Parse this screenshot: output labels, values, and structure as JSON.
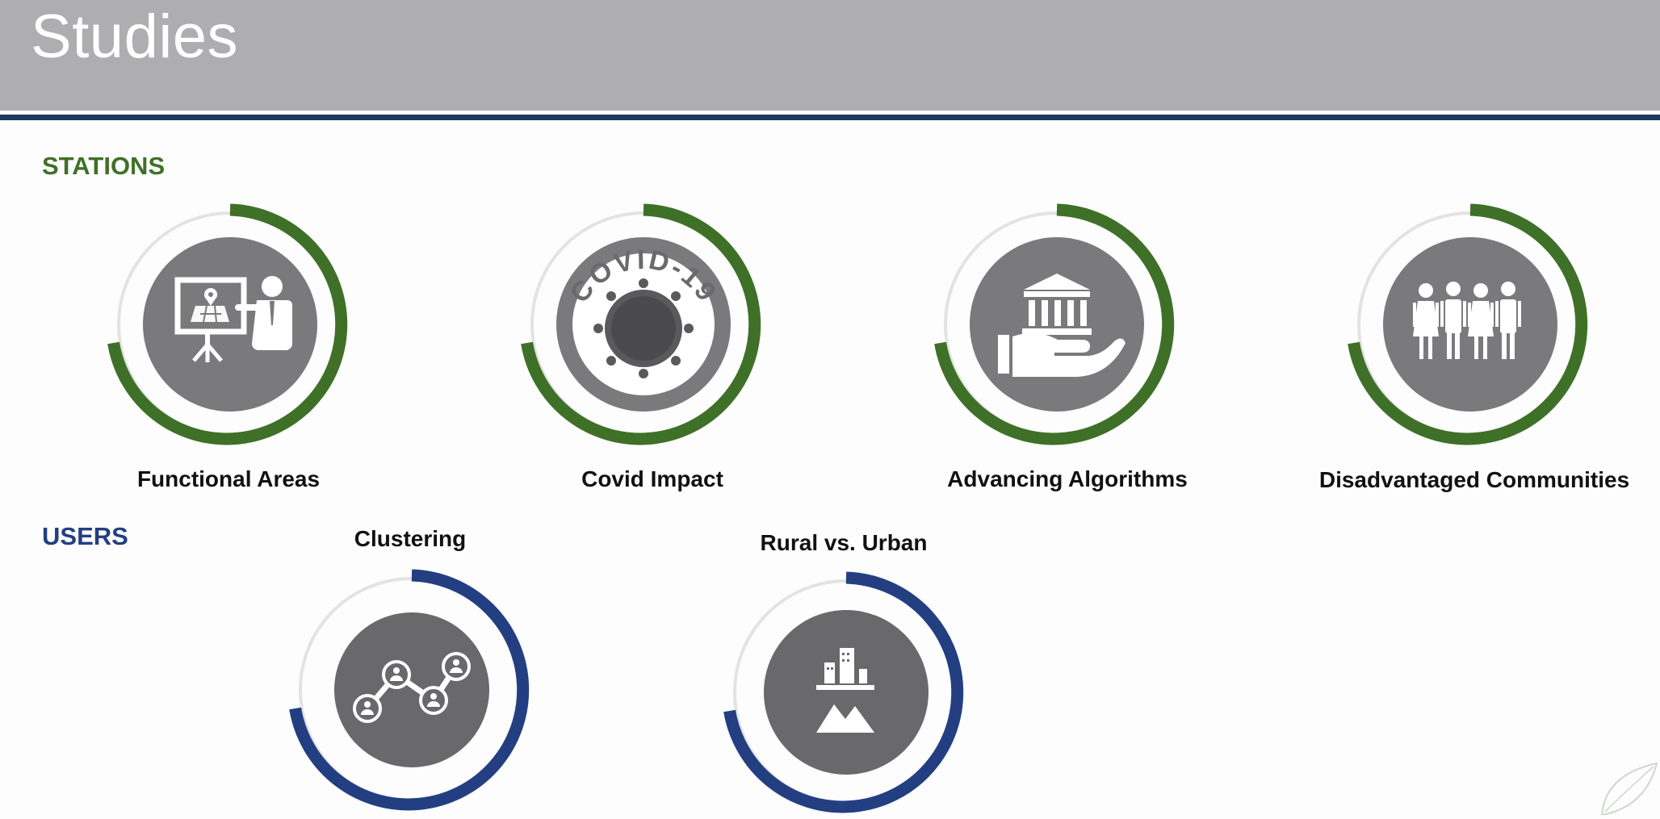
{
  "page": {
    "title": "Studies"
  },
  "colors": {
    "green": "#3f7028",
    "navy": "#233f82",
    "circle": "#7a7a7c",
    "header": "#aeaeb0"
  },
  "sections": {
    "stations": {
      "title": "STATIONS",
      "items": [
        {
          "label": "Functional Areas",
          "icon": "presentation-map-icon"
        },
        {
          "label": "Covid Impact",
          "icon": "covid-virus-icon",
          "icon_text": "COVID-19"
        },
        {
          "label": "Advancing Algorithms",
          "icon": "bank-hand-icon"
        },
        {
          "label": "Disadvantaged Communities",
          "icon": "people-group-icon"
        }
      ]
    },
    "users": {
      "title": "USERS",
      "items": [
        {
          "label": "Clustering",
          "icon": "user-network-icon"
        },
        {
          "label": "Rural vs. Urban",
          "icon": "city-mountain-icon"
        }
      ]
    }
  }
}
